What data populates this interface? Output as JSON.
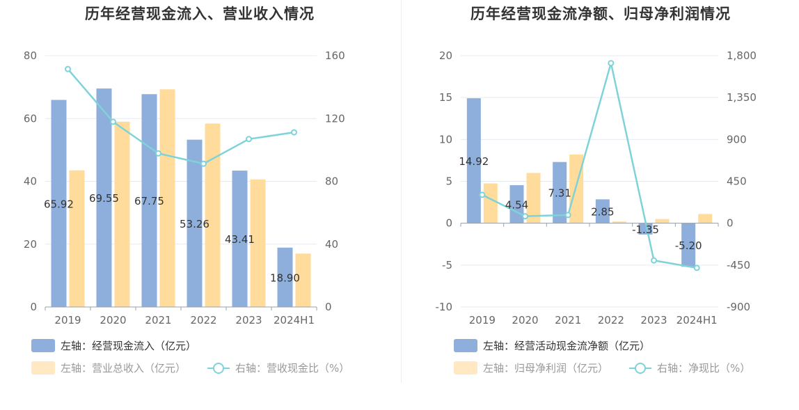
{
  "chart_data": [
    {
      "type": "bar",
      "title": "历年经营现金流入、营业收入情况",
      "categories": [
        "2019",
        "2020",
        "2021",
        "2022",
        "2023",
        "2024H1"
      ],
      "y_left": {
        "min": 0,
        "max": 80,
        "ticks": [
          "0",
          "20",
          "40",
          "60",
          "80"
        ]
      },
      "y_right": {
        "min": 0,
        "max": 160,
        "ticks": [
          "0",
          "40",
          "80",
          "120",
          "160"
        ]
      },
      "series": [
        {
          "name": "左轴：经营现金流入（亿元）",
          "kind": "bar",
          "axis": "left",
          "color": "#8eaedb",
          "values": [
            65.92,
            69.55,
            67.75,
            53.26,
            43.41,
            18.9
          ],
          "labels": [
            "65.92",
            "69.55",
            "67.75",
            "53.26",
            "43.41",
            "18.90"
          ]
        },
        {
          "name": "左轴：营业总收入（亿元）",
          "kind": "bar",
          "axis": "left",
          "color": "#ffdb9c",
          "values": [
            43.5,
            59.0,
            69.3,
            58.4,
            40.6,
            17.0
          ]
        },
        {
          "name": "右轴：营收现金比（%）",
          "kind": "line",
          "axis": "right",
          "color": "#7ed3d9",
          "values": [
            151.5,
            117.9,
            97.8,
            91.2,
            106.9,
            111.2
          ]
        }
      ]
    },
    {
      "type": "bar",
      "title": "历年经营现金流净额、归母净利润情况",
      "categories": [
        "2019",
        "2020",
        "2021",
        "2022",
        "2023",
        "2024H1"
      ],
      "y_left": {
        "min": -10,
        "max": 20,
        "ticks": [
          "-10",
          "-5",
          "0",
          "5",
          "10",
          "15",
          "20"
        ]
      },
      "y_right": {
        "min": -900,
        "max": 1800,
        "ticks": [
          "-900",
          "-450",
          "0",
          "450",
          "900",
          "1,350",
          "1,800"
        ]
      },
      "series": [
        {
          "name": "左轴：经营活动现金流净额（亿元）",
          "kind": "bar",
          "axis": "left",
          "color": "#8eaedb",
          "values": [
            14.92,
            4.54,
            7.31,
            2.85,
            -1.35,
            -5.2
          ],
          "labels": [
            "14.92",
            "4.54",
            "7.31",
            "2.85",
            "-1.35",
            "-5.20"
          ]
        },
        {
          "name": "左轴：归母净利润（亿元）",
          "kind": "bar",
          "axis": "left",
          "color": "#ffdb9c",
          "values": [
            4.75,
            6.0,
            8.2,
            0.2,
            0.5,
            1.1
          ]
        },
        {
          "name": "右轴：净现比（%）",
          "kind": "line",
          "axis": "right",
          "color": "#7ed3d9",
          "values": [
            305,
            75,
            88,
            1720,
            -400,
            -480
          ]
        }
      ]
    }
  ]
}
